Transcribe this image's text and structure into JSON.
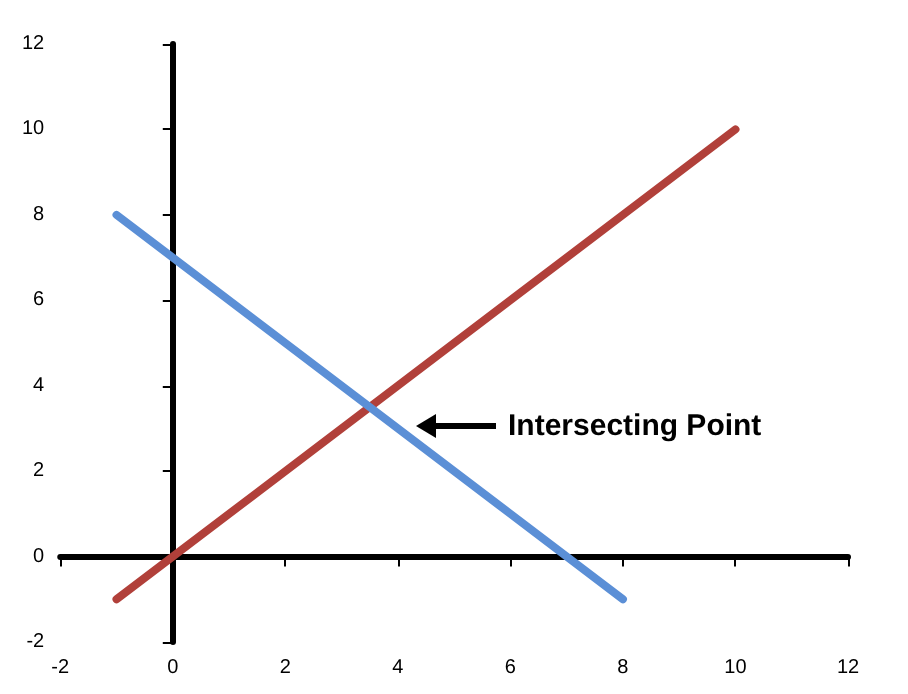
{
  "chart_data": {
    "type": "line",
    "xlim": [
      -2,
      12
    ],
    "ylim": [
      -2,
      12
    ],
    "xticks": [
      -2,
      0,
      2,
      4,
      6,
      8,
      10,
      12
    ],
    "yticks": [
      -2,
      0,
      2,
      4,
      6,
      8,
      10,
      12
    ],
    "marker": "none",
    "line_style": "solid",
    "series": [
      {
        "color": "#b1403a",
        "x": [
          -1,
          10
        ],
        "values": [
          -1,
          10
        ]
      },
      {
        "color": "#5b8fd6",
        "x": [
          -1,
          8
        ],
        "values": [
          8,
          -1
        ]
      }
    ],
    "annotations": [
      "Intersecting Point"
    ]
  }
}
